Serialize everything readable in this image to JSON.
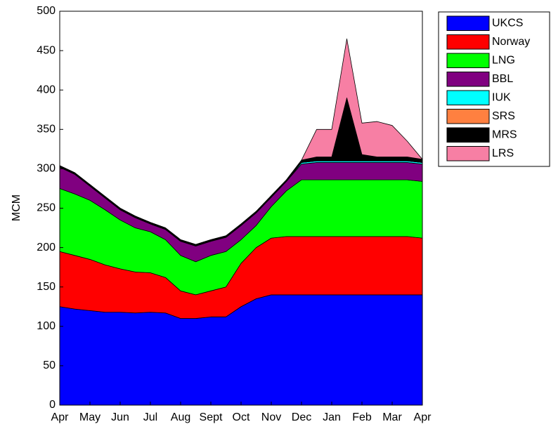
{
  "chart_data": {
    "type": "stacked_area",
    "ylabel": "MCM",
    "categories": [
      "Apr",
      null,
      "May",
      null,
      "Jun",
      null,
      "Jul",
      null,
      "Aug",
      null,
      "Sept",
      null,
      "Oct",
      null,
      "Nov",
      null,
      "Dec",
      null,
      "Jan",
      null,
      "Feb",
      null,
      "Mar",
      null,
      "Apr"
    ],
    "ylim": [
      0,
      500
    ],
    "yticks": [
      0,
      50,
      100,
      150,
      200,
      250,
      300,
      350,
      400,
      450,
      500
    ],
    "legend": "outside-top-right",
    "series": [
      {
        "name": "UKCS",
        "color": "#0000ff",
        "values": [
          125,
          122,
          120,
          118,
          118,
          117,
          118,
          117,
          110,
          110,
          112,
          112,
          125,
          135,
          140,
          140,
          140,
          140,
          140,
          140,
          140,
          140,
          140,
          140,
          140
        ]
      },
      {
        "name": "Norway",
        "color": "#ff0000",
        "values": [
          70,
          68,
          65,
          60,
          55,
          52,
          50,
          45,
          35,
          30,
          33,
          38,
          55,
          65,
          72,
          74,
          74,
          74,
          74,
          74,
          74,
          74,
          74,
          74,
          72
        ]
      },
      {
        "name": "LNG",
        "color": "#00ff00",
        "values": [
          80,
          78,
          75,
          70,
          62,
          56,
          52,
          48,
          45,
          42,
          45,
          45,
          30,
          28,
          40,
          58,
          72,
          72,
          72,
          72,
          72,
          72,
          72,
          72,
          72
        ]
      },
      {
        "name": "BBL",
        "color": "#800080",
        "values": [
          27,
          25,
          18,
          15,
          13,
          13,
          10,
          13,
          18,
          20,
          18,
          18,
          18,
          16,
          12,
          12,
          20,
          22,
          22,
          22,
          22,
          22,
          22,
          22,
          22
        ]
      },
      {
        "name": "IUK",
        "color": "#00ffff",
        "values": [
          0,
          0,
          0,
          0,
          0,
          0,
          0,
          0,
          0,
          0,
          0,
          0,
          0,
          0,
          0,
          0,
          2,
          2,
          2,
          2,
          2,
          2,
          2,
          2,
          2
        ]
      },
      {
        "name": "SRS",
        "color": "#ff8040",
        "values": [
          0,
          0,
          0,
          0,
          0,
          0,
          0,
          0,
          0,
          0,
          0,
          0,
          0,
          0,
          0,
          0,
          0,
          0,
          0,
          0,
          0,
          0,
          0,
          0,
          0
        ]
      },
      {
        "name": "MRS",
        "color": "#000000",
        "values": [
          2,
          2,
          2,
          2,
          2,
          2,
          2,
          2,
          2,
          2,
          2,
          2,
          2,
          2,
          2,
          2,
          3,
          5,
          5,
          80,
          8,
          5,
          5,
          5,
          4
        ]
      },
      {
        "name": "LRS",
        "color": "#f77fa4",
        "values": [
          0,
          0,
          0,
          0,
          0,
          0,
          0,
          0,
          0,
          0,
          0,
          0,
          0,
          0,
          0,
          0,
          0,
          35,
          35,
          75,
          40,
          45,
          40,
          20,
          0
        ]
      }
    ]
  }
}
